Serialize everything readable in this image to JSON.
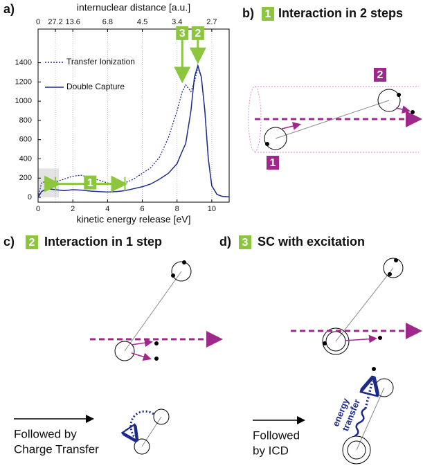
{
  "chart_data": {
    "type": "line",
    "panel_label": "a)",
    "x2_label": "internuclear distance [a.u.]",
    "xlabel": "kinetic energy release [eV]",
    "x": [
      0,
      0.2,
      0.5,
      1,
      1.5,
      2,
      2.5,
      3,
      3.5,
      4,
      4.5,
      5,
      5.5,
      6,
      6.5,
      7,
      7.5,
      8,
      8.3,
      8.5,
      8.8,
      9,
      9.2,
      9.4,
      9.6,
      9.8,
      10,
      10.3,
      10.6,
      11
    ],
    "series": [
      {
        "name": "Transfer Ionization",
        "color": "#1c2a8a",
        "dash": "dotted",
        "values": [
          0,
          150,
          170,
          160,
          190,
          220,
          230,
          200,
          180,
          150,
          140,
          150,
          190,
          250,
          310,
          420,
          620,
          900,
          1100,
          1170,
          1100,
          1200,
          1350,
          1250,
          900,
          400,
          120,
          30,
          10,
          5
        ]
      },
      {
        "name": "Double Capture",
        "color": "#1c2a8a",
        "dash": "solid",
        "values": [
          0,
          60,
          90,
          80,
          70,
          80,
          75,
          65,
          60,
          55,
          60,
          70,
          90,
          110,
          140,
          190,
          250,
          350,
          480,
          560,
          900,
          1250,
          1370,
          1250,
          900,
          400,
          120,
          30,
          10,
          5
        ]
      }
    ],
    "xlim": [
      0,
      11
    ],
    "ylim": [
      -50,
      1750
    ],
    "xticks": [
      0,
      2,
      4,
      6,
      8,
      10
    ],
    "yticks": [
      0,
      200,
      400,
      600,
      800,
      1000,
      1200,
      1400
    ],
    "x2ticks": [
      0,
      {
        "value": 1,
        "label": "27.2"
      },
      {
        "value": 2,
        "label": "13.6"
      },
      {
        "value": 4,
        "label": "6.8"
      },
      {
        "value": 6,
        "label": "4.5"
      },
      {
        "value": 8,
        "label": "3.4"
      },
      {
        "value": 10,
        "label": "2.7"
      }
    ],
    "x2grid": true,
    "shade": {
      "x": [
        0,
        1.2
      ],
      "y": [
        0,
        300
      ],
      "color": "#e3e3e3"
    },
    "annotation_color": "#8cc63f",
    "annotations": [
      {
        "text": "1",
        "x": [
          1,
          5
        ],
        "y": 140
      },
      {
        "text": "3",
        "x": 8.3,
        "y": [
          1650,
          1200
        ]
      },
      {
        "text": "2",
        "x": 9.2,
        "y": [
          1650,
          1400
        ]
      }
    ]
  },
  "panels": [
    {
      "label": "b)",
      "step": "1",
      "title": "Interaction in 2 steps",
      "markers": [
        "2",
        "1"
      ]
    },
    {
      "label": "c)",
      "step": "2",
      "title": "Interaction in 1 step",
      "note": [
        "Followed by",
        "Charge Transfer"
      ]
    },
    {
      "label": "d)",
      "step": "3",
      "title": "SC  with excitation",
      "note": [
        "Followed",
        "by ICD"
      ],
      "arrow_text": [
        "energy",
        "transfer"
      ]
    }
  ]
}
